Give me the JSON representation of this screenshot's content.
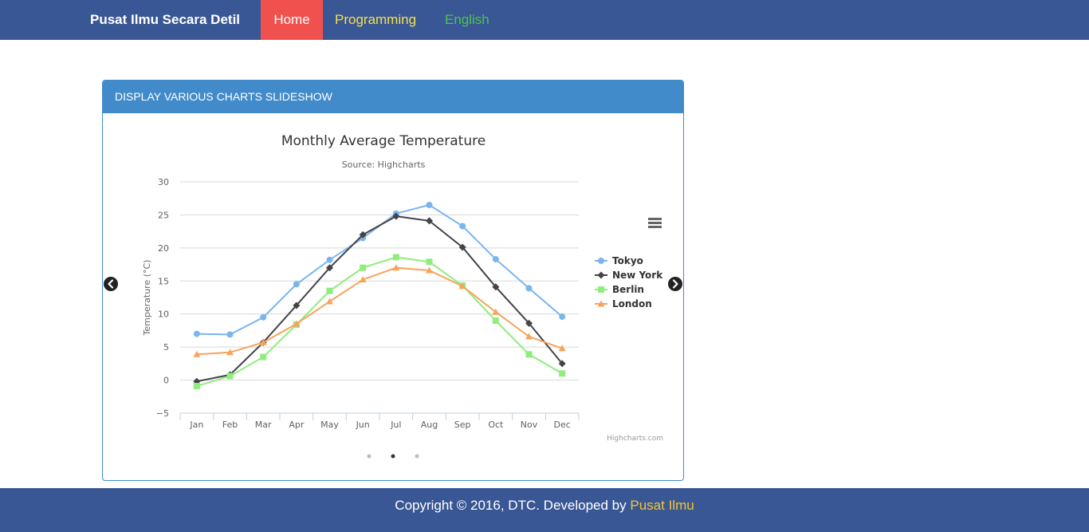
{
  "navbar": {
    "brand": "Pusat Ilmu Secara Detil",
    "items": [
      {
        "label": "Home"
      },
      {
        "label": "Programming"
      },
      {
        "label": "English"
      }
    ]
  },
  "panel": {
    "heading": "DISPLAY VARIOUS CHARTS SLIDESHOW"
  },
  "carousel": {
    "prev_icon": "chevron-left-icon",
    "next_icon": "chevron-right-icon",
    "indicators": 3,
    "active_index": 1
  },
  "chart_menu_icon": "hamburger-menu-icon",
  "chart_data": {
    "type": "line",
    "title": "Monthly Average Temperature",
    "subtitle": "Source: Highcharts",
    "xlabel": "",
    "ylabel": "Temperature (°C)",
    "categories": [
      "Jan",
      "Feb",
      "Mar",
      "Apr",
      "May",
      "Jun",
      "Jul",
      "Aug",
      "Sep",
      "Oct",
      "Nov",
      "Dec"
    ],
    "ylim": [
      -5,
      30
    ],
    "yticks": [
      -5,
      0,
      5,
      10,
      15,
      20,
      25,
      30
    ],
    "grid": true,
    "legend_position": "right",
    "credits": "Highcharts.com",
    "series": [
      {
        "name": "Tokyo",
        "color": "#7cb5ec",
        "marker": "circle",
        "values": [
          7.0,
          6.9,
          9.5,
          14.5,
          18.2,
          21.5,
          25.2,
          26.5,
          23.3,
          18.3,
          13.9,
          9.6
        ]
      },
      {
        "name": "New York",
        "color": "#434348",
        "marker": "diamond",
        "values": [
          -0.2,
          0.8,
          5.7,
          11.3,
          17.0,
          22.0,
          24.8,
          24.1,
          20.1,
          14.1,
          8.6,
          2.5
        ]
      },
      {
        "name": "Berlin",
        "color": "#90ed7d",
        "marker": "square",
        "values": [
          -0.9,
          0.6,
          3.5,
          8.4,
          13.5,
          17.0,
          18.6,
          17.9,
          14.3,
          9.0,
          3.9,
          1.0
        ]
      },
      {
        "name": "London",
        "color": "#f7a35c",
        "marker": "triangle",
        "values": [
          3.9,
          4.2,
          5.7,
          8.5,
          11.9,
          15.2,
          17.0,
          16.6,
          14.2,
          10.3,
          6.6,
          4.8
        ]
      }
    ]
  },
  "footer": {
    "text": "Copyright © 2016, DTC. Developed by",
    "link": "Pusat Ilmu"
  }
}
